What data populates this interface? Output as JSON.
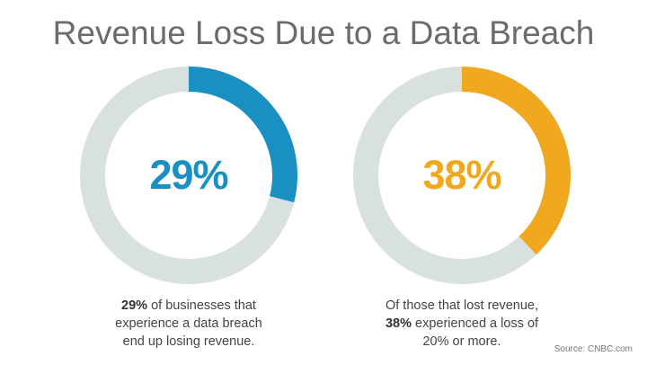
{
  "title": "Revenue Loss Due to a Data Breach",
  "colors": {
    "track": "#d9e0e0",
    "left_accent": "#1a8fc2",
    "right_accent": "#f0a81e",
    "title": "#6b6b6b"
  },
  "chart_data": [
    {
      "type": "pie",
      "variant": "donut",
      "value_percent": 29,
      "label": "29%",
      "color": "#1a8fc2",
      "caption": {
        "bold": "29%",
        "text1": " of businesses that",
        "line2": "experience a data breach",
        "line3": "end up losing revenue."
      }
    },
    {
      "type": "pie",
      "variant": "donut",
      "value_percent": 38,
      "label": "38%",
      "color": "#f0a81e",
      "caption": {
        "line1": "Of those that lost revenue,",
        "bold": "38%",
        "text2": " experienced a loss of",
        "line3": "20% or more."
      }
    }
  ],
  "source": "Source: CNBC.com"
}
